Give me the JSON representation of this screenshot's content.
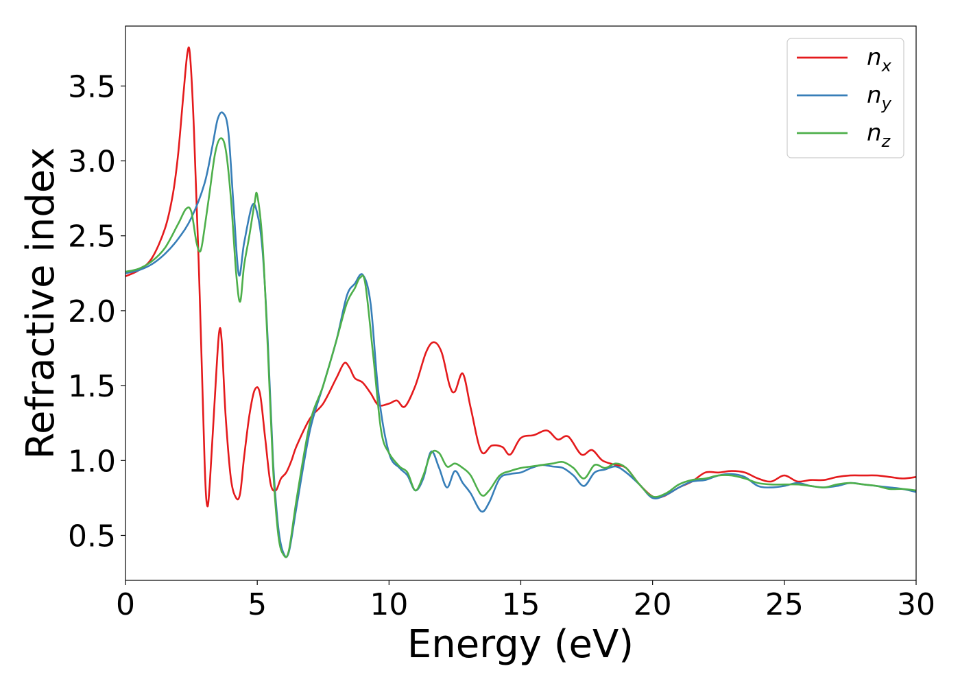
{
  "chart_data": {
    "type": "line",
    "title": "",
    "xlabel": "Energy (eV)",
    "ylabel": "Refractive index",
    "xlim": [
      0,
      30
    ],
    "ylim": [
      0.2,
      3.9
    ],
    "xticks": [
      0,
      5,
      10,
      15,
      20,
      25,
      30
    ],
    "xtick_labels": [
      "0",
      "5",
      "10",
      "15",
      "20",
      "25",
      "30"
    ],
    "yticks": [
      0.5,
      1.0,
      1.5,
      2.0,
      2.5,
      3.0,
      3.5
    ],
    "ytick_labels": [
      "0.5",
      "1.0",
      "1.5",
      "2.0",
      "2.5",
      "3.0",
      "3.5"
    ],
    "grid": false,
    "legend_position": "top-right",
    "series": [
      {
        "name": "n_x",
        "label_main": "n",
        "label_sub": "x",
        "color": "#e41a1c",
        "x": [
          0,
          0.5,
          1.0,
          1.5,
          1.8,
          2.0,
          2.2,
          2.35,
          2.45,
          2.6,
          2.8,
          3.0,
          3.1,
          3.2,
          3.4,
          3.55,
          3.65,
          3.8,
          4.0,
          4.2,
          4.35,
          4.5,
          4.7,
          4.9,
          5.1,
          5.3,
          5.5,
          5.7,
          5.9,
          6.1,
          6.3,
          6.5,
          7.0,
          7.5,
          8.0,
          8.3,
          8.5,
          8.7,
          9.0,
          9.3,
          9.6,
          10.0,
          10.3,
          10.6,
          11.0,
          11.4,
          11.7,
          12.0,
          12.3,
          12.5,
          12.8,
          13.1,
          13.5,
          13.9,
          14.3,
          14.6,
          15.0,
          15.5,
          16.0,
          16.4,
          16.8,
          17.3,
          17.7,
          18.1,
          18.6,
          19.0,
          19.5,
          20.0,
          20.4,
          21.0,
          21.5,
          22.0,
          22.5,
          23.0,
          23.5,
          24.0,
          24.5,
          25.0,
          25.5,
          26.0,
          26.5,
          27.0,
          27.5,
          28.0,
          28.5,
          29.0,
          29.5,
          30.0
        ],
        "y": [
          2.23,
          2.27,
          2.35,
          2.55,
          2.78,
          3.05,
          3.45,
          3.72,
          3.7,
          3.2,
          2.2,
          1.0,
          0.7,
          0.85,
          1.45,
          1.85,
          1.8,
          1.3,
          0.88,
          0.75,
          0.78,
          1.02,
          1.3,
          1.47,
          1.45,
          1.15,
          0.85,
          0.8,
          0.88,
          0.92,
          1.0,
          1.1,
          1.28,
          1.38,
          1.55,
          1.65,
          1.62,
          1.55,
          1.52,
          1.45,
          1.37,
          1.38,
          1.4,
          1.36,
          1.5,
          1.72,
          1.79,
          1.72,
          1.5,
          1.46,
          1.58,
          1.35,
          1.06,
          1.1,
          1.09,
          1.04,
          1.15,
          1.17,
          1.2,
          1.14,
          1.16,
          1.04,
          1.07,
          1.0,
          0.97,
          0.95,
          0.84,
          0.76,
          0.76,
          0.82,
          0.86,
          0.92,
          0.92,
          0.93,
          0.92,
          0.88,
          0.86,
          0.9,
          0.86,
          0.87,
          0.87,
          0.89,
          0.9,
          0.9,
          0.9,
          0.89,
          0.88,
          0.89
        ]
      },
      {
        "name": "n_y",
        "label_main": "n",
        "label_sub": "y",
        "color": "#377eb8",
        "x": [
          0,
          0.5,
          1.0,
          1.5,
          2.0,
          2.5,
          3.0,
          3.3,
          3.5,
          3.7,
          3.9,
          4.1,
          4.3,
          4.5,
          4.8,
          5.0,
          5.2,
          5.4,
          5.6,
          5.8,
          6.0,
          6.2,
          6.5,
          7.0,
          7.5,
          8.0,
          8.4,
          8.7,
          9.0,
          9.3,
          9.6,
          10.0,
          10.4,
          10.7,
          11.0,
          11.3,
          11.6,
          11.9,
          12.2,
          12.5,
          12.8,
          13.1,
          13.5,
          13.8,
          14.2,
          14.6,
          15.0,
          15.4,
          15.8,
          16.2,
          16.6,
          17.0,
          17.4,
          17.8,
          18.2,
          18.6,
          19.0,
          19.5,
          20.0,
          20.5,
          21.0,
          21.5,
          22.0,
          22.5,
          23.0,
          23.5,
          24.0,
          24.5,
          25.0,
          25.5,
          26.0,
          26.5,
          27.0,
          27.5,
          28.0,
          28.5,
          29.0,
          29.5,
          30.0
        ],
        "y": [
          2.25,
          2.27,
          2.31,
          2.38,
          2.48,
          2.62,
          2.85,
          3.1,
          3.28,
          3.32,
          3.2,
          2.7,
          2.24,
          2.45,
          2.7,
          2.65,
          2.4,
          1.8,
          1.0,
          0.55,
          0.38,
          0.39,
          0.7,
          1.2,
          1.5,
          1.8,
          2.1,
          2.18,
          2.24,
          2.05,
          1.45,
          1.05,
          0.95,
          0.9,
          0.8,
          0.88,
          1.06,
          0.95,
          0.82,
          0.93,
          0.85,
          0.78,
          0.66,
          0.72,
          0.88,
          0.91,
          0.92,
          0.95,
          0.97,
          0.96,
          0.95,
          0.9,
          0.83,
          0.92,
          0.94,
          0.96,
          0.92,
          0.84,
          0.75,
          0.77,
          0.82,
          0.86,
          0.87,
          0.9,
          0.91,
          0.89,
          0.83,
          0.82,
          0.83,
          0.85,
          0.83,
          0.82,
          0.83,
          0.85,
          0.84,
          0.83,
          0.82,
          0.81,
          0.79
        ]
      },
      {
        "name": "n_z",
        "label_main": "n",
        "label_sub": "z",
        "color": "#4daf4a",
        "x": [
          0,
          0.5,
          1.0,
          1.5,
          2.0,
          2.3,
          2.5,
          2.7,
          2.85,
          3.0,
          3.2,
          3.4,
          3.6,
          3.8,
          4.0,
          4.2,
          4.35,
          4.5,
          4.7,
          4.9,
          5.0,
          5.2,
          5.4,
          5.6,
          5.8,
          6.0,
          6.2,
          6.5,
          7.0,
          7.5,
          8.0,
          8.4,
          8.7,
          8.9,
          9.1,
          9.4,
          9.7,
          10.0,
          10.4,
          10.7,
          11.0,
          11.3,
          11.6,
          11.9,
          12.2,
          12.5,
          12.8,
          13.1,
          13.5,
          13.8,
          14.2,
          14.6,
          15.0,
          15.4,
          15.8,
          16.2,
          16.6,
          17.0,
          17.4,
          17.8,
          18.2,
          18.6,
          19.0,
          19.5,
          20.0,
          20.5,
          21.0,
          21.5,
          22.0,
          22.5,
          23.0,
          23.5,
          24.0,
          24.5,
          25.0,
          25.5,
          26.0,
          26.5,
          27.0,
          27.5,
          28.0,
          28.5,
          29.0,
          29.5,
          30.0
        ],
        "y": [
          2.26,
          2.28,
          2.33,
          2.42,
          2.58,
          2.68,
          2.66,
          2.45,
          2.4,
          2.55,
          2.8,
          3.05,
          3.15,
          3.08,
          2.75,
          2.25,
          2.06,
          2.3,
          2.5,
          2.72,
          2.77,
          2.45,
          1.75,
          0.95,
          0.5,
          0.37,
          0.4,
          0.75,
          1.25,
          1.5,
          1.8,
          2.05,
          2.15,
          2.22,
          2.18,
          1.7,
          1.2,
          1.05,
          0.96,
          0.92,
          0.8,
          0.9,
          1.05,
          1.05,
          0.96,
          0.98,
          0.95,
          0.9,
          0.77,
          0.8,
          0.9,
          0.93,
          0.95,
          0.96,
          0.97,
          0.98,
          0.99,
          0.95,
          0.88,
          0.97,
          0.95,
          0.98,
          0.95,
          0.84,
          0.76,
          0.78,
          0.84,
          0.87,
          0.88,
          0.9,
          0.9,
          0.88,
          0.85,
          0.84,
          0.84,
          0.84,
          0.83,
          0.82,
          0.84,
          0.85,
          0.84,
          0.83,
          0.81,
          0.81,
          0.8
        ]
      }
    ]
  }
}
